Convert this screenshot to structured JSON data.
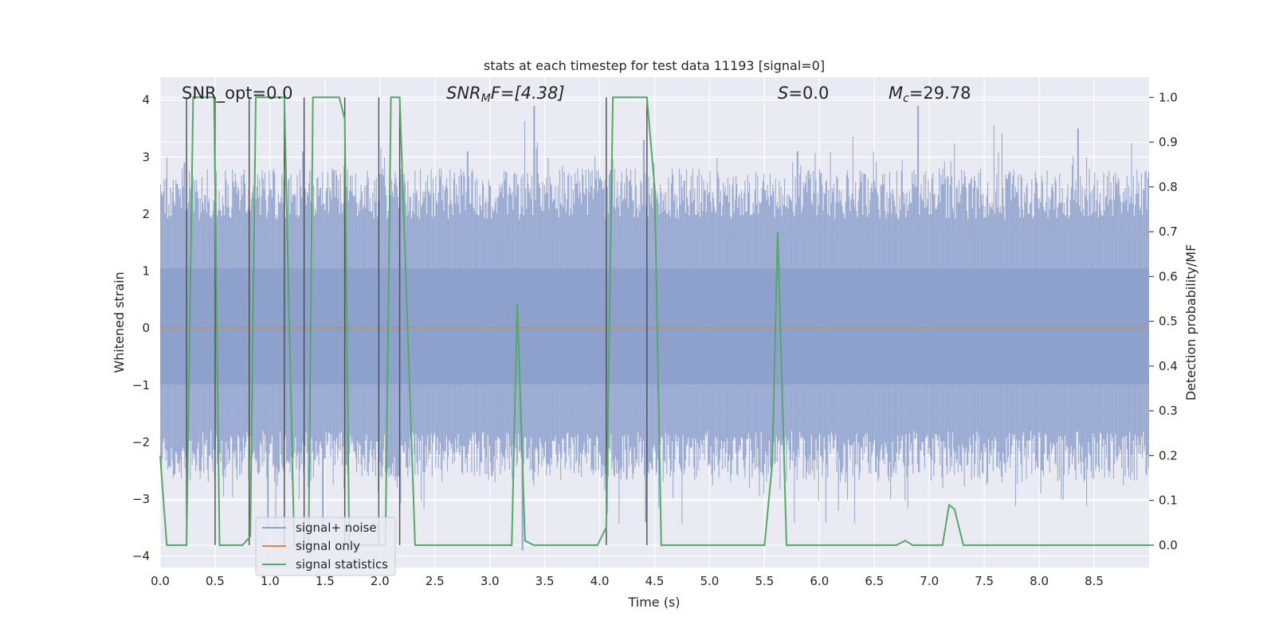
{
  "chart_data": {
    "type": "line",
    "title": "stats at each timestep for test data 11193 [signal=0]",
    "xlabel": "Time (s)",
    "ylabel": "Whitened strain",
    "y2label": "Detection probability/MF",
    "xlim": [
      0,
      9
    ],
    "ylim": [
      -4.2,
      4.4
    ],
    "y2lim": [
      -0.05,
      1.045
    ],
    "xticks": [
      0.0,
      0.5,
      1.0,
      1.5,
      2.0,
      2.5,
      3.0,
      3.5,
      4.0,
      4.5,
      5.0,
      5.5,
      6.0,
      6.5,
      7.0,
      7.5,
      8.0,
      8.5
    ],
    "xtick_labels": [
      "0.0",
      "0.5",
      "1.0",
      "1.5",
      "2.0",
      "2.5",
      "3.0",
      "3.5",
      "4.0",
      "4.5",
      "5.0",
      "5.5",
      "6.0",
      "6.5",
      "7.0",
      "7.5",
      "8.0",
      "8.5"
    ],
    "yticks": [
      4,
      3,
      2,
      1,
      0,
      -1,
      -2,
      -3,
      -4
    ],
    "ytick_labels": [
      "4",
      "3",
      "2",
      "1",
      "0",
      "−1",
      "−2",
      "−3",
      "−4"
    ],
    "y2ticks": [
      1.0,
      0.9,
      0.8,
      0.7,
      0.6,
      0.5,
      0.4,
      0.3,
      0.2,
      0.1,
      0.0
    ],
    "y2tick_labels": [
      "1.0",
      "0.9",
      "0.8",
      "0.7",
      "0.6",
      "0.5",
      "0.4",
      "0.3",
      "0.2",
      "0.1",
      "0.0"
    ],
    "annotations": {
      "snr_opt": "SNR_opt=0.0",
      "snr_mf_sym": "SNR",
      "snr_mf_sub": "M",
      "snr_mf_rest": "F=[4.38]",
      "s_sym": "S",
      "s_rest": "=0.0",
      "mc_sym": "M",
      "mc_sub": "c",
      "mc_rest": "=29.78"
    },
    "legend": {
      "position": "lower-left",
      "entries": [
        "signal+ noise",
        "signal only",
        "signal statistics"
      ]
    },
    "colors": {
      "noise": "#8da0cb",
      "signal": "#dd8452",
      "stats": "#55a868",
      "vlines": "#4c4c4c",
      "zero_line": "#999999"
    },
    "noise_envelope": {
      "band_approx": [
        -1.8,
        1.9
      ],
      "peaks": [
        {
          "x": 0.22,
          "y": 2.9
        },
        {
          "x": 1.3,
          "y": 3.1
        },
        {
          "x": 2.8,
          "y": 3.1
        },
        {
          "x": 3.4,
          "y": 3.9
        },
        {
          "x": 4.4,
          "y": 3.3
        },
        {
          "x": 5.8,
          "y": 3.1
        },
        {
          "x": 6.9,
          "y": 3.9
        },
        {
          "x": 8.35,
          "y": 3.5
        },
        {
          "x": 3.3,
          "y": -3.9
        },
        {
          "x": 4.42,
          "y": -3.4
        },
        {
          "x": 0.98,
          "y": -3.5
        },
        {
          "x": 1.48,
          "y": -3.6
        }
      ]
    },
    "series": [
      {
        "name": "signal statistics",
        "axis": "right",
        "x": [
          0.0,
          0.06,
          0.24,
          0.3,
          0.49,
          0.54,
          0.75,
          0.82,
          0.87,
          1.13,
          1.22,
          1.35,
          1.39,
          1.63,
          1.68,
          1.72,
          2.01,
          2.05,
          2.1,
          2.18,
          2.32,
          2.4,
          3.2,
          3.25,
          3.32,
          3.4,
          3.98,
          4.06,
          4.12,
          4.43,
          4.5,
          4.56,
          4.7,
          5.5,
          5.57,
          5.62,
          5.7,
          6.7,
          6.78,
          6.85,
          7.12,
          7.18,
          7.23,
          7.31,
          9.0
        ],
        "y": [
          0.2,
          0.0,
          0.0,
          1.0,
          1.0,
          0.0,
          0.0,
          0.02,
          1.0,
          1.0,
          0.0,
          0.0,
          1.0,
          1.0,
          0.95,
          0.0,
          0.0,
          0.0,
          1.0,
          1.0,
          0.0,
          0.0,
          0.0,
          0.54,
          0.01,
          0.0,
          0.0,
          0.04,
          1.0,
          1.0,
          0.8,
          0.0,
          0.0,
          0.0,
          0.18,
          0.7,
          0.0,
          0.0,
          0.01,
          0.0,
          0.0,
          0.09,
          0.08,
          0.0,
          0.0
        ]
      },
      {
        "name": "signal only",
        "axis": "left",
        "x": [
          0.0,
          9.0
        ],
        "y": [
          0.0,
          0.0
        ]
      }
    ],
    "vertical_lines_x": [
      0.24,
      0.5,
      0.81,
      1.13,
      1.31,
      1.68,
      1.99,
      2.18,
      4.06,
      4.43
    ]
  }
}
